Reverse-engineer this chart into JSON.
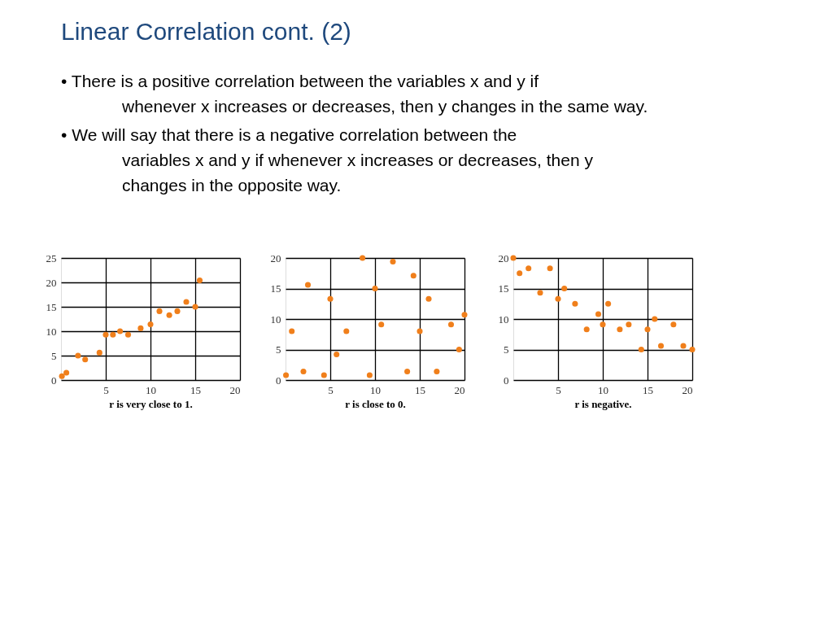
{
  "chart_data": [
    {
      "type": "other",
      "title": "Linear Correlation cont. (2)",
      "annotations": [
        "• There is a positive correlation between the variables x and y if whenever x increases or decreases, then y changes in the same way.",
        "• We will say that there is a negative correlation between the variables x and y if whenever x increases or decreases, then y changes in the opposite way."
      ]
    },
    {
      "type": "scatter",
      "xlabel": "r is very close to 1.",
      "x": [
        0.1,
        0.6,
        1.9,
        2.7,
        4.3,
        5,
        5.8,
        6.6,
        7.5,
        8.9,
        10,
        11,
        12.1,
        13,
        14,
        15,
        15.5
      ],
      "values": [
        0.8,
        1.5,
        5,
        4.2,
        5.6,
        9.3,
        9.3,
        10,
        9.3,
        10.6,
        11.4,
        14.1,
        13.3,
        14.1,
        16,
        15,
        20.4
      ],
      "color": "#f07f1b",
      "marker": "circle",
      "xlim": [
        0,
        20
      ],
      "ylim": [
        0,
        25
      ],
      "xticks": [
        5,
        10,
        15,
        20
      ],
      "yticks": [
        0,
        5,
        10,
        15,
        20,
        25
      ],
      "grid": true
    },
    {
      "type": "scatter",
      "xlabel": "r is close to 0.",
      "x": [
        0.05,
        0.7,
        2,
        2.5,
        4.3,
        5,
        5.7,
        6.8,
        8.6,
        9.4,
        10,
        10.7,
        12,
        13.6,
        14.3,
        15,
        16,
        16.9,
        18.5,
        19.4,
        20
      ],
      "values": [
        0.8,
        8,
        1.4,
        15.6,
        0.8,
        13.3,
        4.2,
        8,
        20,
        0.8,
        15,
        9.1,
        19.4,
        1.4,
        17.1,
        8,
        13.3,
        1.4,
        9.1,
        5,
        10.7
      ],
      "color": "#f07f1b",
      "marker": "circle",
      "xlim": [
        0,
        20
      ],
      "ylim": [
        0,
        20
      ],
      "xticks": [
        5,
        10,
        15,
        20
      ],
      "yticks": [
        0,
        5,
        10,
        15,
        20
      ],
      "grid": true
    },
    {
      "type": "scatter",
      "xlabel": "r is negative.",
      "x": [
        0,
        0.7,
        1.7,
        3,
        4.1,
        5,
        5.7,
        6.9,
        8.2,
        9.5,
        10,
        10.6,
        11.9,
        12.9,
        14.3,
        15,
        15.8,
        16.5,
        17.9,
        19,
        20
      ],
      "values": [
        20,
        17.5,
        18.3,
        14.3,
        18.3,
        13.3,
        15,
        12.5,
        8.3,
        10.8,
        9.1,
        12.5,
        8.3,
        9.1,
        5,
        8.3,
        10,
        5.6,
        9.1,
        5.6,
        5
      ],
      "color": "#f07f1b",
      "marker": "circle",
      "xlim": [
        0,
        20
      ],
      "ylim": [
        0,
        20
      ],
      "xticks": [
        5,
        10,
        15,
        20
      ],
      "yticks": [
        0,
        5,
        10,
        15,
        20
      ],
      "grid": true
    }
  ]
}
